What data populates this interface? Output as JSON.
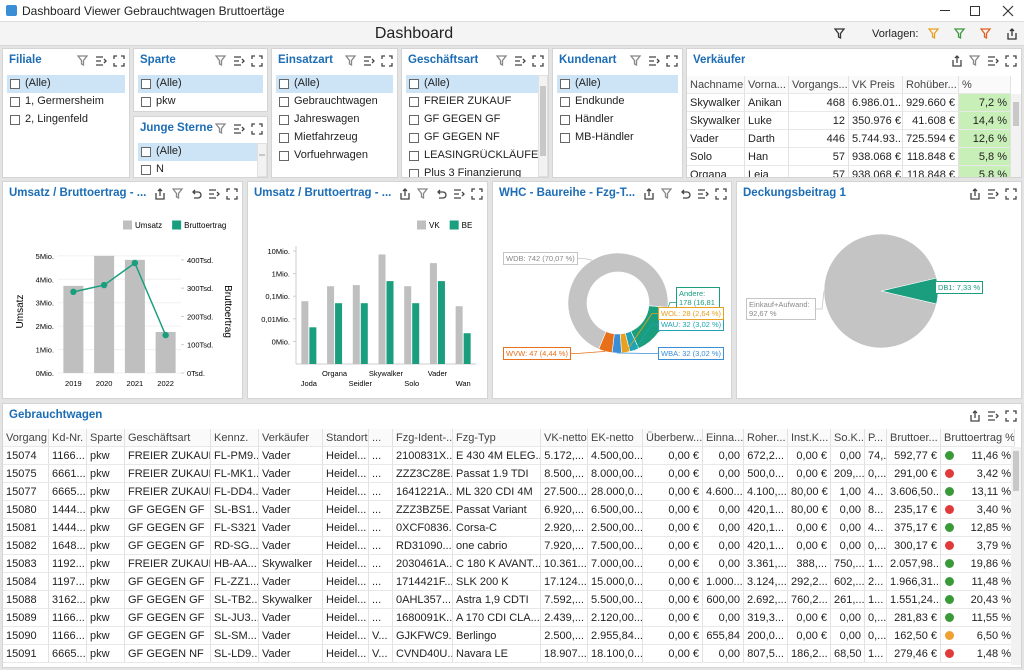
{
  "window": {
    "title": "Dashboard Viewer Gebrauchtwagen Bruttoertäge"
  },
  "header": {
    "title": "Dashboard",
    "templates_label": "Vorlagen:"
  },
  "filters": [
    {
      "title": "Filiale",
      "items": [
        "(Alle)",
        "1, Germersheim",
        "2, Lingenfeld"
      ]
    },
    {
      "title": "Sparte",
      "items": [
        "(Alle)",
        "pkw"
      ]
    },
    {
      "title": "Junge Sterne",
      "items": [
        "(Alle)",
        "N"
      ]
    },
    {
      "title": "Einsatzart",
      "items": [
        "(Alle)",
        "Gebrauchtwagen",
        "Jahreswagen",
        "Mietfahrzeug",
        "Vorfuehrwagen"
      ]
    },
    {
      "title": "Geschäftsart",
      "items": [
        "(Alle)",
        "FREIER ZUKAUF",
        "GF GEGEN GF",
        "GF GEGEN NF",
        "LEASINGRÜCKLÄUFER",
        "Plus 3 Finanzierung"
      ]
    },
    {
      "title": "Kundenart",
      "items": [
        "(Alle)",
        "Endkunde",
        "Händler",
        "MB-Händler"
      ]
    }
  ],
  "sellers": {
    "title": "Verkäufer",
    "columns": [
      "Nachname",
      "Vorna...",
      "Vorgangs...",
      "VK Preis",
      "Rohüber...",
      "%"
    ],
    "rows": [
      [
        "Skywalker",
        "Anikan",
        "468",
        "6.986.01...",
        "929.660 €",
        "7,2 %"
      ],
      [
        "Skywalker",
        "Luke",
        "12",
        "350.976 €",
        "41.608 €",
        "14,4 %"
      ],
      [
        "Vader",
        "Darth",
        "446",
        "5.744.93...",
        "725.594 €",
        "12,6 %"
      ],
      [
        "Solo",
        "Han",
        "57",
        "938.068 €",
        "118.848 €",
        "5,8 %"
      ],
      [
        "Organa",
        "Leia",
        "57",
        "938.068 €",
        "118.848 €",
        "5,8 %"
      ]
    ]
  },
  "chart_data": [
    {
      "type": "bar_line",
      "title": "Umsatz / Bruttoertrag - ...",
      "categories": [
        "2019",
        "2020",
        "2021",
        "2022"
      ],
      "series": [
        {
          "name": "Umsatz",
          "color": "#bfbfbf",
          "values": [
            3720000,
            5000000,
            4830000,
            1750000
          ]
        },
        {
          "name": "Bruttoertrag",
          "color": "#1a9e7e",
          "values": [
            287000,
            311000,
            389000,
            134000
          ],
          "axis": "y2",
          "type": "line"
        }
      ],
      "ylabel": "Umsatz",
      "y2label": "Bruttoertrag",
      "ylim": [
        0,
        5250000
      ],
      "yticks": [
        {
          "value": 0,
          "label": "0Mio."
        },
        {
          "value": 1000000,
          "label": "1Mio."
        },
        {
          "value": 2000000,
          "label": "2Mio."
        },
        {
          "value": 3000000,
          "label": "3Mio."
        },
        {
          "value": 4000000,
          "label": "4Mio."
        },
        {
          "value": 5000000,
          "label": "5Mio."
        }
      ],
      "y2lim": [
        0,
        435000
      ],
      "y2ticks": [
        {
          "value": 0,
          "label": "0Tsd."
        },
        {
          "value": 100000,
          "label": "100Tsd."
        },
        {
          "value": 200000,
          "label": "200Tsd."
        },
        {
          "value": 300000,
          "label": "300Tsd."
        },
        {
          "value": 400000,
          "label": "400Tsd."
        }
      ]
    },
    {
      "type": "bar",
      "title": "Umsatz / Bruttoertrag - ...",
      "categories": [
        "Joda",
        "Organa",
        "Seidler",
        "Skywalker",
        "Solo",
        "Vader",
        "Wan"
      ],
      "series": [
        {
          "name": "VK",
          "color": "#bfbfbf",
          "values": [
            60000,
            276000,
            309000,
            7000000,
            276000,
            2900000,
            36000
          ]
        },
        {
          "name": "BE",
          "color": "#1a9e7e",
          "values": [
            4200,
            49000,
            49000,
            464000,
            49000,
            464000,
            2300
          ]
        }
      ],
      "yscale": "log",
      "ylim": [
        100,
        16600000
      ],
      "yticks": [
        {
          "value": 1000,
          "label": "0Mio."
        },
        {
          "value": 10000,
          "label": "0,01Mio."
        },
        {
          "value": 100000,
          "label": "0,1Mio."
        },
        {
          "value": 1000000,
          "label": "1Mio."
        },
        {
          "value": 10000000,
          "label": "10Mio."
        }
      ]
    },
    {
      "type": "donut",
      "title": "WHC - Baureihe - Fzg-T...",
      "values": [
        178,
        32,
        28,
        32,
        47,
        742
      ],
      "value_labels": [
        "Andere: 178 (16,81 %)",
        "WAU: 32 (3,02 %)",
        "WOL: 28 (2,64 %)",
        "WBA: 32 (3,02 %)",
        "WVW: 47 (4,44 %)",
        "WDB: 742 (70,07 %)"
      ],
      "colors": [
        "#1a9e7e",
        "#1fa3b5",
        "#e8a020",
        "#3a8ed6",
        "#e8701a",
        "#c4c4c4"
      ]
    },
    {
      "type": "pie",
      "title": "Deckungsbeitrag 1",
      "values": [
        7.33,
        92.67
      ],
      "value_labels": [
        "DB1: 7,33 %",
        "Einkauf+Aufwand: 92,67 %"
      ],
      "colors": [
        "#1a9e7e",
        "#c4c4c4"
      ]
    }
  ],
  "grid": {
    "title": "Gebrauchtwagen",
    "columns": [
      "Vorgang",
      "Kd-Nr.",
      "Sparte",
      "Geschäftsart",
      "Kennz.",
      "Verkäufer",
      "Standort",
      "...",
      "Fzg-Ident-...",
      "Fzg-Typ",
      "VK-netto",
      "EK-netto",
      "Überberw...",
      "Einna...",
      "Roher...",
      "Inst.K...",
      "So.K...",
      "P...",
      "Bruttoer...",
      "Bruttoertrag %"
    ],
    "rows": [
      [
        "15074",
        "1166...",
        "pkw",
        "FREIER ZUKAUF",
        "FL-PM9...",
        "Vader",
        "Heidel...",
        "...",
        "2100831X...",
        "E 430 4M ELEG...",
        "5.172,...",
        "4.500,00...",
        "0,00 €",
        "0,00",
        "672,2...",
        "0,00 €",
        "0,00",
        "74,...",
        "592,77 €",
        "11,46 %"
      ],
      [
        "15075",
        "6661...",
        "pkw",
        "FREIER ZUKAUF",
        "FL-MK1...",
        "Vader",
        "Heidel...",
        "...",
        "ZZZ3CZ8E...",
        "Passat 1.9 TDI",
        "8.500,...",
        "8.000,00...",
        "0,00 €",
        "0,00",
        "500,0...",
        "0,00 €",
        "209,...",
        "0,...",
        "291,00 €",
        "3,42 %"
      ],
      [
        "15077",
        "6665...",
        "pkw",
        "FREIER ZUKAUF",
        "FL-DD4...",
        "Vader",
        "Heidel...",
        "...",
        "1641221A...",
        "ML 320 CDI 4M",
        "27.500...",
        "28.000,0...",
        "0,00 €",
        "4.600...",
        "4.100,...",
        "80,00 €",
        "1,00",
        "4...",
        "3.606,50...",
        "13,11 %"
      ],
      [
        "15080",
        "1444...",
        "pkw",
        "GF GEGEN GF",
        "SL-BS1...",
        "Vader",
        "Heidel...",
        "...",
        "ZZZ3BZ5E...",
        "Passat Variant",
        "6.920,...",
        "6.500,00...",
        "0,00 €",
        "0,00",
        "420,1...",
        "80,00 €",
        "0,00",
        "8...",
        "235,17 €",
        "3,40 %"
      ],
      [
        "15081",
        "1444...",
        "pkw",
        "GF GEGEN GF",
        "FL-S321",
        "Vader",
        "Heidel...",
        "...",
        "0XCF0836...",
        "Corsa-C",
        "2.920,...",
        "2.500,00...",
        "0,00 €",
        "0,00",
        "420,1...",
        "0,00 €",
        "0,00",
        "4...",
        "375,17 €",
        "12,85 %"
      ],
      [
        "15082",
        "1648...",
        "pkw",
        "GF GEGEN GF",
        "RD-SG...",
        "Vader",
        "Heidel...",
        "...",
        "RD31090...",
        "one cabrio",
        "7.920,...",
        "7.500,00...",
        "0,00 €",
        "0,00",
        "420,1...",
        "0,00 €",
        "0,00",
        "0,...",
        "300,17 €",
        "3,79 %"
      ],
      [
        "15083",
        "1192...",
        "pkw",
        "FREIER ZUKAUF",
        "HB-AA...",
        "Skywalker",
        "Heidel...",
        "...",
        "2030461A...",
        "C 180 K AVANT...",
        "10.361...",
        "7.000,00...",
        "0,00 €",
        "0,00",
        "3.361,...",
        "388,...",
        "750,...",
        "1...",
        "2.057,98...",
        "19,86 %"
      ],
      [
        "15084",
        "1197...",
        "pkw",
        "GF GEGEN GF",
        "FL-ZZ1...",
        "Vader",
        "Heidel...",
        "...",
        "1714421F...",
        "SLK 200 K",
        "17.124...",
        "15.000,0...",
        "0,00 €",
        "1.000...",
        "3.124,...",
        "292,2...",
        "602,...",
        "2...",
        "1.966,31...",
        "11,48 %"
      ],
      [
        "15088",
        "3162...",
        "pkw",
        "GF GEGEN GF",
        "SL-TB2...",
        "Skywalker",
        "Heidel...",
        "...",
        "0AHL357...",
        "Astra 1,9 CDTI",
        "7.592,...",
        "5.500,00...",
        "0,00 €",
        "600,00",
        "2.692,...",
        "760,2...",
        "261,...",
        "1...",
        "1.551,24...",
        "20,43 %"
      ],
      [
        "15089",
        "1166...",
        "pkw",
        "GF GEGEN GF",
        "SL-JU3...",
        "Vader",
        "Heidel...",
        "...",
        "1680091K...",
        "A 170 CDI CLA...",
        "2.439,...",
        "2.120,00...",
        "0,00 €",
        "0,00",
        "319,3...",
        "0,00 €",
        "0,00",
        "0,...",
        "281,83 €",
        "11,55 %"
      ],
      [
        "15090",
        "1166...",
        "pkw",
        "GF GEGEN GF",
        "SL-SM...",
        "Vader",
        "Heidel...",
        "V...",
        "GJKFWC9...",
        "Berlingo",
        "2.500,...",
        "2.955,84...",
        "0,00 €",
        "655,84",
        "200,0...",
        "0,00 €",
        "0,00",
        "0,...",
        "162,50 €",
        "6,50 %"
      ],
      [
        "15091",
        "6665...",
        "pkw",
        "GF GEGEN NF",
        "SL-LD9...",
        "Vader",
        "Heidel...",
        "V...",
        "CVND40U...",
        "Navara LE",
        "18.907...",
        "18.100,0...",
        "0,00 €",
        "0,00",
        "807,5...",
        "186,2...",
        "68,50 €",
        "1...",
        "279,46 €",
        "1,48 %"
      ]
    ],
    "status": [
      "#3a9a3a",
      "#e03a3a",
      "#3a9a3a",
      "#e03a3a",
      "#3a9a3a",
      "#e03a3a",
      "#3a9a3a",
      "#3a9a3a",
      "#3a9a3a",
      "#3a9a3a",
      "#f0a030",
      "#e03a3a"
    ]
  }
}
